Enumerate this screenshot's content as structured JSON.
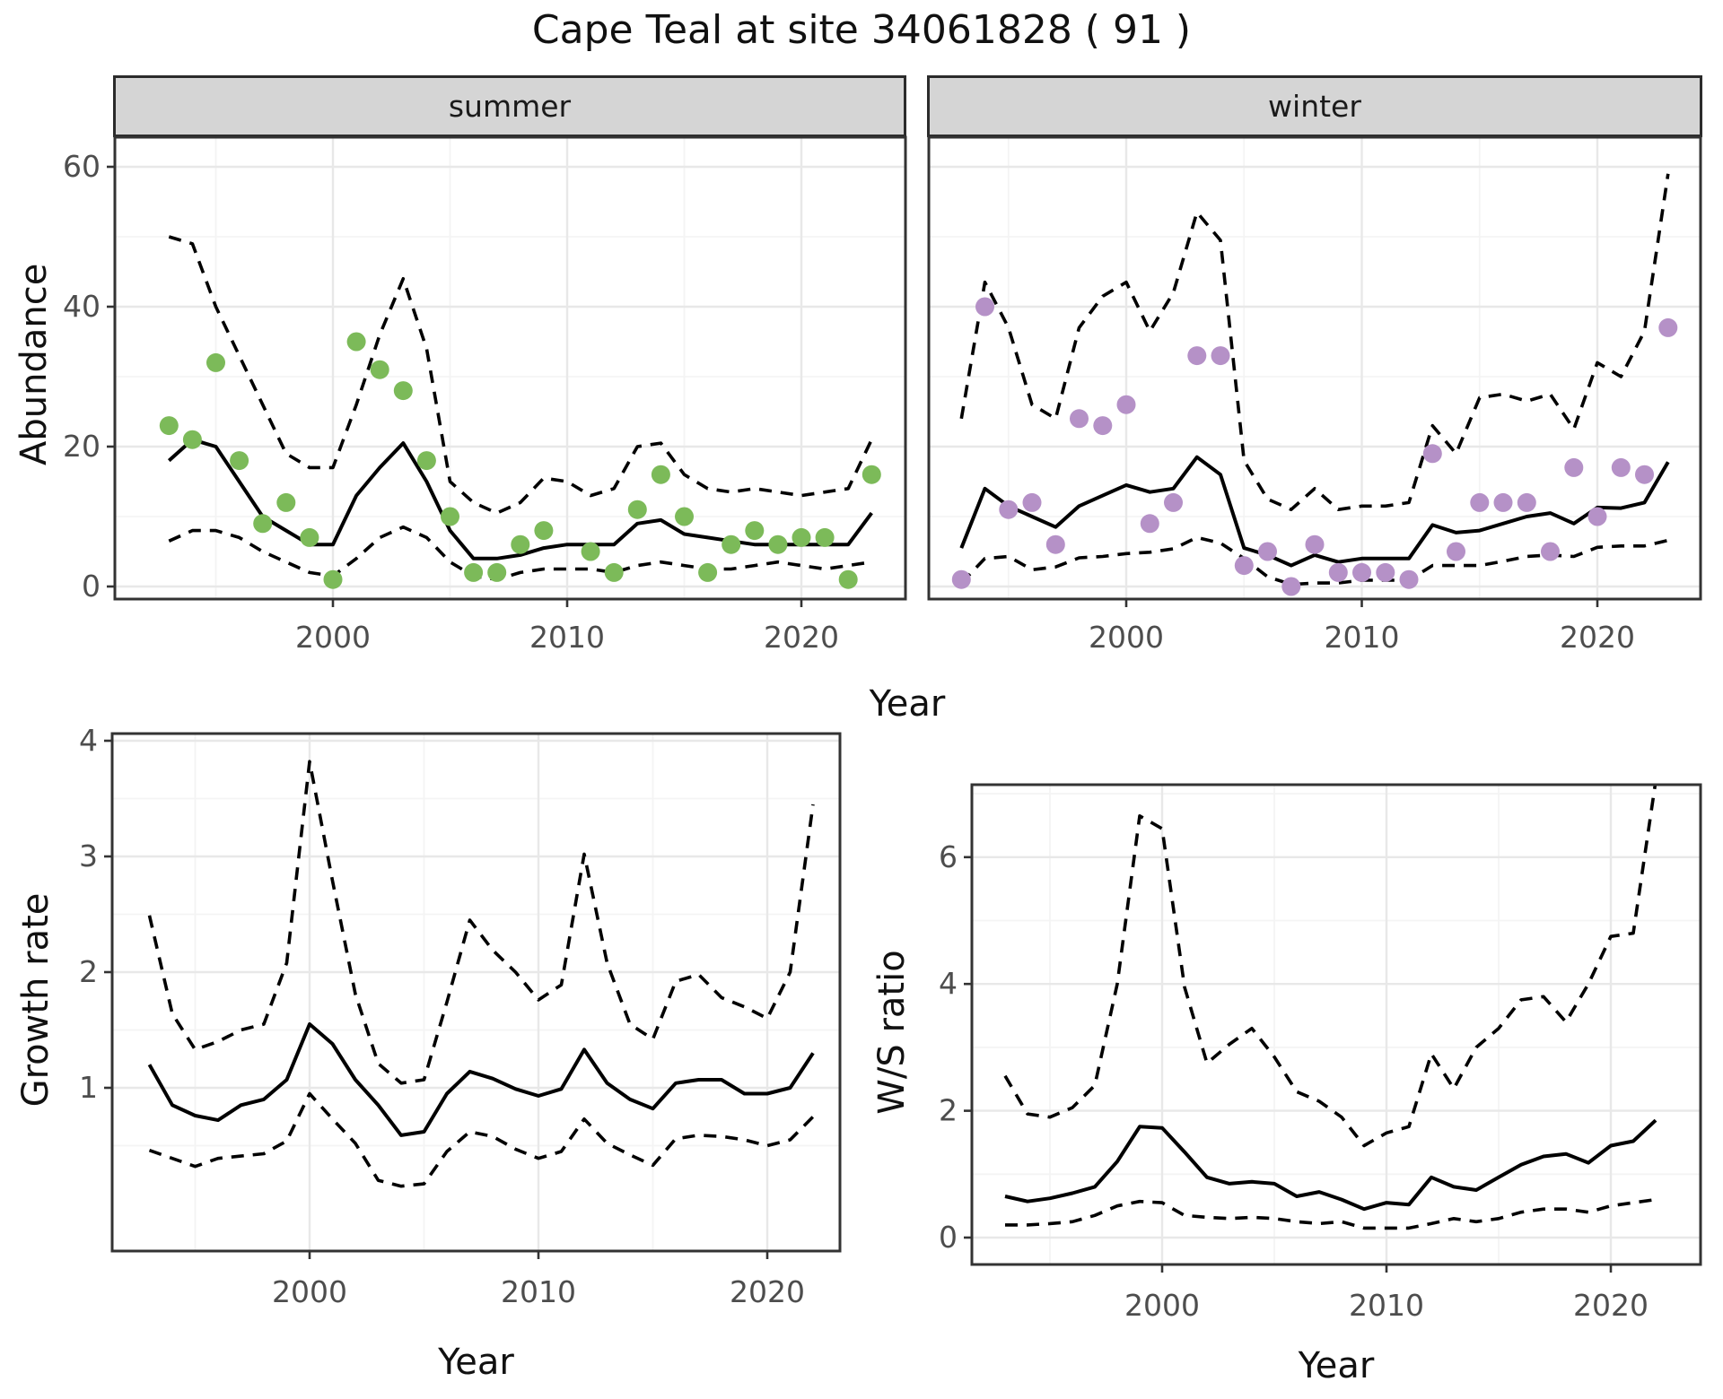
{
  "title": "Cape Teal at site 34061828 ( 91 )",
  "facets": {
    "summer": {
      "label": "summer"
    },
    "winter": {
      "label": "winter"
    }
  },
  "axis_titles": {
    "x_top": "Year",
    "x_growth": "Year",
    "x_ws": "Year",
    "y_abundance": "Abundance",
    "y_growth": "Growth rate",
    "y_ws": "W/S ratio"
  },
  "colors": {
    "summer_dot": "#7cba59",
    "winter_dot": "#b591c7",
    "line": "#000000",
    "panel_border": "#333333",
    "strip_bg": "#d5d5d5",
    "grid_major": "#e8e8e8",
    "grid_minor": "#f4f4f4",
    "tick_text": "#4d4d4d"
  },
  "chart_data": [
    {
      "id": "summer",
      "type": "line",
      "title": "summer",
      "xlabel": "Year",
      "ylabel": "Abundance",
      "x": [
        1993,
        1994,
        1995,
        1996,
        1997,
        1998,
        1999,
        2000,
        2001,
        2002,
        2003,
        2004,
        2005,
        2006,
        2007,
        2008,
        2009,
        2010,
        2011,
        2012,
        2013,
        2014,
        2015,
        2016,
        2017,
        2018,
        2019,
        2020,
        2021,
        2022,
        2023
      ],
      "xticks": [
        2000,
        2010,
        2020
      ],
      "yticks": [
        0,
        20,
        40,
        60
      ],
      "ylim": [
        -3,
        66
      ],
      "legend": "none",
      "grid": "on",
      "series": [
        {
          "name": "observed_counts",
          "style": "points",
          "values": [
            23,
            21,
            32,
            18,
            9,
            12,
            7,
            1,
            35,
            31,
            28,
            18,
            10,
            2,
            2,
            6,
            8,
            null,
            5,
            2,
            11,
            16,
            10,
            2,
            6,
            8,
            6,
            7,
            7,
            1,
            16
          ]
        },
        {
          "name": "model_mean",
          "style": "solid",
          "values": [
            18,
            21,
            20,
            15,
            10,
            8,
            6,
            6,
            13,
            17,
            20.5,
            15,
            8,
            4,
            4,
            4.5,
            5.5,
            6,
            6,
            6,
            9,
            9.5,
            7.5,
            7,
            6.5,
            6,
            6,
            6,
            6,
            6,
            10.5
          ]
        },
        {
          "name": "upper_ci",
          "style": "dashed",
          "values": [
            50,
            49,
            40,
            33,
            26,
            19,
            17,
            17,
            26,
            36,
            44,
            34,
            15,
            12,
            10.5,
            12,
            15.5,
            15,
            13,
            14,
            20,
            20.5,
            16,
            14,
            13.5,
            14,
            13.5,
            13,
            13.5,
            14,
            21
          ]
        },
        {
          "name": "lower_ci",
          "style": "dashed",
          "values": [
            6.5,
            8,
            8,
            7,
            5,
            3.5,
            2,
            1.5,
            4,
            7,
            8.5,
            7,
            3.5,
            1.5,
            1,
            2,
            2.5,
            2.5,
            2.5,
            2,
            3,
            3.5,
            3,
            2.5,
            2.5,
            3,
            3.5,
            3,
            2.5,
            3,
            3.5
          ]
        }
      ]
    },
    {
      "id": "winter",
      "type": "line",
      "title": "winter",
      "xlabel": "Year",
      "ylabel": "Abundance",
      "x": [
        1993,
        1994,
        1995,
        1996,
        1997,
        1998,
        1999,
        2000,
        2001,
        2002,
        2003,
        2004,
        2005,
        2006,
        2007,
        2008,
        2009,
        2010,
        2011,
        2012,
        2013,
        2014,
        2015,
        2016,
        2017,
        2018,
        2019,
        2020,
        2021,
        2022,
        2023
      ],
      "xticks": [
        2000,
        2010,
        2020
      ],
      "yticks": [
        0,
        20,
        40,
        60
      ],
      "ylim": [
        -3,
        66
      ],
      "legend": "none",
      "grid": "on",
      "series": [
        {
          "name": "observed_counts",
          "style": "points",
          "values": [
            1,
            40,
            11,
            12,
            6,
            24,
            23,
            26,
            9,
            12,
            33,
            33,
            3,
            5,
            0,
            6,
            2,
            2,
            2,
            1,
            19,
            5,
            12,
            12,
            12,
            5,
            17,
            10,
            17,
            16,
            37
          ]
        },
        {
          "name": "model_mean",
          "style": "solid",
          "values": [
            5.5,
            14,
            11.5,
            10,
            8.5,
            11.5,
            13,
            14.5,
            13.5,
            14,
            18.5,
            16,
            5.5,
            4.5,
            3,
            4.5,
            3.5,
            4,
            4,
            4,
            8.8,
            7.7,
            8,
            9,
            10,
            10.5,
            9,
            11.3,
            11.2,
            12,
            17.8
          ]
        },
        {
          "name": "upper_ci",
          "style": "dashed",
          "values": [
            24,
            43.5,
            37,
            26,
            24,
            37,
            41.5,
            43.5,
            36.5,
            42,
            53.5,
            49.5,
            18,
            12.5,
            11,
            14,
            11,
            11.5,
            11.5,
            12,
            23,
            19,
            27,
            27.5,
            26.5,
            27.5,
            22.5,
            32,
            30,
            36.5,
            59
          ]
        },
        {
          "name": "lower_ci",
          "style": "dashed",
          "values": [
            0.5,
            4,
            4.3,
            2.4,
            2.8,
            4.1,
            4.3,
            4.7,
            4.9,
            5.4,
            7,
            6.2,
            4,
            1.4,
            0.3,
            0.5,
            0.5,
            0.9,
            0.9,
            0.9,
            3,
            3,
            3,
            3.6,
            4.3,
            4.5,
            4.3,
            5.6,
            5.8,
            5.8,
            6.6
          ]
        }
      ]
    },
    {
      "id": "growth",
      "type": "line",
      "title": "",
      "xlabel": "Year",
      "ylabel": "Growth rate",
      "x": [
        1993,
        1994,
        1995,
        1996,
        1997,
        1998,
        1999,
        2000,
        2001,
        2002,
        2003,
        2004,
        2005,
        2006,
        2007,
        2008,
        2009,
        2010,
        2011,
        2012,
        2013,
        2014,
        2015,
        2016,
        2017,
        2018,
        2019,
        2020,
        2021,
        2022
      ],
      "xticks": [
        2000,
        2010,
        2020
      ],
      "yticks": [
        1,
        2,
        3,
        4
      ],
      "ylim": [
        -0.4,
        4.1
      ],
      "legend": "none",
      "grid": "on",
      "series": [
        {
          "name": "growth_rate_mean",
          "style": "solid",
          "values": [
            1.2,
            0.85,
            0.76,
            0.72,
            0.85,
            0.9,
            1.07,
            1.55,
            1.38,
            1.07,
            0.85,
            0.59,
            0.62,
            0.95,
            1.14,
            1.08,
            0.99,
            0.93,
            0.99,
            1.33,
            1.04,
            0.9,
            0.82,
            1.04,
            1.07,
            1.07,
            0.95,
            0.95,
            1.0,
            1.3
          ]
        },
        {
          "name": "upper_ci",
          "style": "dashed",
          "values": [
            2.49,
            1.64,
            1.33,
            1.4,
            1.5,
            1.55,
            2.08,
            3.82,
            2.79,
            1.81,
            1.21,
            1.04,
            1.07,
            1.74,
            2.45,
            2.19,
            2.0,
            1.76,
            1.89,
            3.02,
            2.08,
            1.55,
            1.42,
            1.92,
            1.98,
            1.78,
            1.7,
            1.6,
            2.0,
            3.45
          ]
        },
        {
          "name": "lower_ci",
          "style": "dashed",
          "values": [
            0.46,
            0.39,
            0.32,
            0.39,
            0.41,
            0.43,
            0.54,
            0.95,
            0.73,
            0.52,
            0.2,
            0.15,
            0.17,
            0.45,
            0.62,
            0.58,
            0.47,
            0.39,
            0.45,
            0.73,
            0.52,
            0.42,
            0.33,
            0.56,
            0.59,
            0.58,
            0.55,
            0.5,
            0.55,
            0.75
          ]
        }
      ]
    },
    {
      "id": "ws",
      "type": "line",
      "title": "",
      "xlabel": "Year",
      "ylabel": "W/S ratio",
      "x": [
        1993,
        1994,
        1995,
        1996,
        1997,
        1998,
        1999,
        2000,
        2001,
        2002,
        2003,
        2004,
        2005,
        2006,
        2007,
        2008,
        2009,
        2010,
        2011,
        2012,
        2013,
        2014,
        2015,
        2016,
        2017,
        2018,
        2019,
        2020,
        2021,
        2022
      ],
      "xticks": [
        2000,
        2010,
        2020
      ],
      "yticks": [
        0,
        2,
        4,
        6
      ],
      "ylim": [
        -0.45,
        7.15
      ],
      "legend": "none",
      "grid": "on",
      "series": [
        {
          "name": "ws_ratio_mean",
          "style": "solid",
          "values": [
            0.65,
            0.57,
            0.62,
            0.7,
            0.8,
            1.2,
            1.75,
            1.73,
            1.35,
            0.95,
            0.85,
            0.88,
            0.85,
            0.65,
            0.72,
            0.6,
            0.45,
            0.55,
            0.52,
            0.95,
            0.8,
            0.75,
            0.95,
            1.15,
            1.28,
            1.32,
            1.18,
            1.45,
            1.52,
            1.85
          ]
        },
        {
          "name": "upper_ci",
          "style": "dashed",
          "values": [
            2.55,
            1.95,
            1.9,
            2.05,
            2.4,
            4.0,
            6.65,
            6.45,
            3.95,
            2.75,
            3.05,
            3.3,
            2.85,
            2.3,
            2.15,
            1.9,
            1.45,
            1.65,
            1.75,
            2.9,
            2.35,
            3.0,
            3.3,
            3.75,
            3.8,
            3.4,
            4.0,
            4.75,
            4.8,
            7.2
          ]
        },
        {
          "name": "lower_ci",
          "style": "dashed",
          "values": [
            0.2,
            0.2,
            0.22,
            0.25,
            0.35,
            0.5,
            0.57,
            0.55,
            0.35,
            0.32,
            0.3,
            0.32,
            0.3,
            0.25,
            0.22,
            0.25,
            0.15,
            0.15,
            0.15,
            0.22,
            0.3,
            0.25,
            0.3,
            0.4,
            0.45,
            0.45,
            0.4,
            0.5,
            0.55,
            0.6
          ]
        }
      ]
    }
  ]
}
